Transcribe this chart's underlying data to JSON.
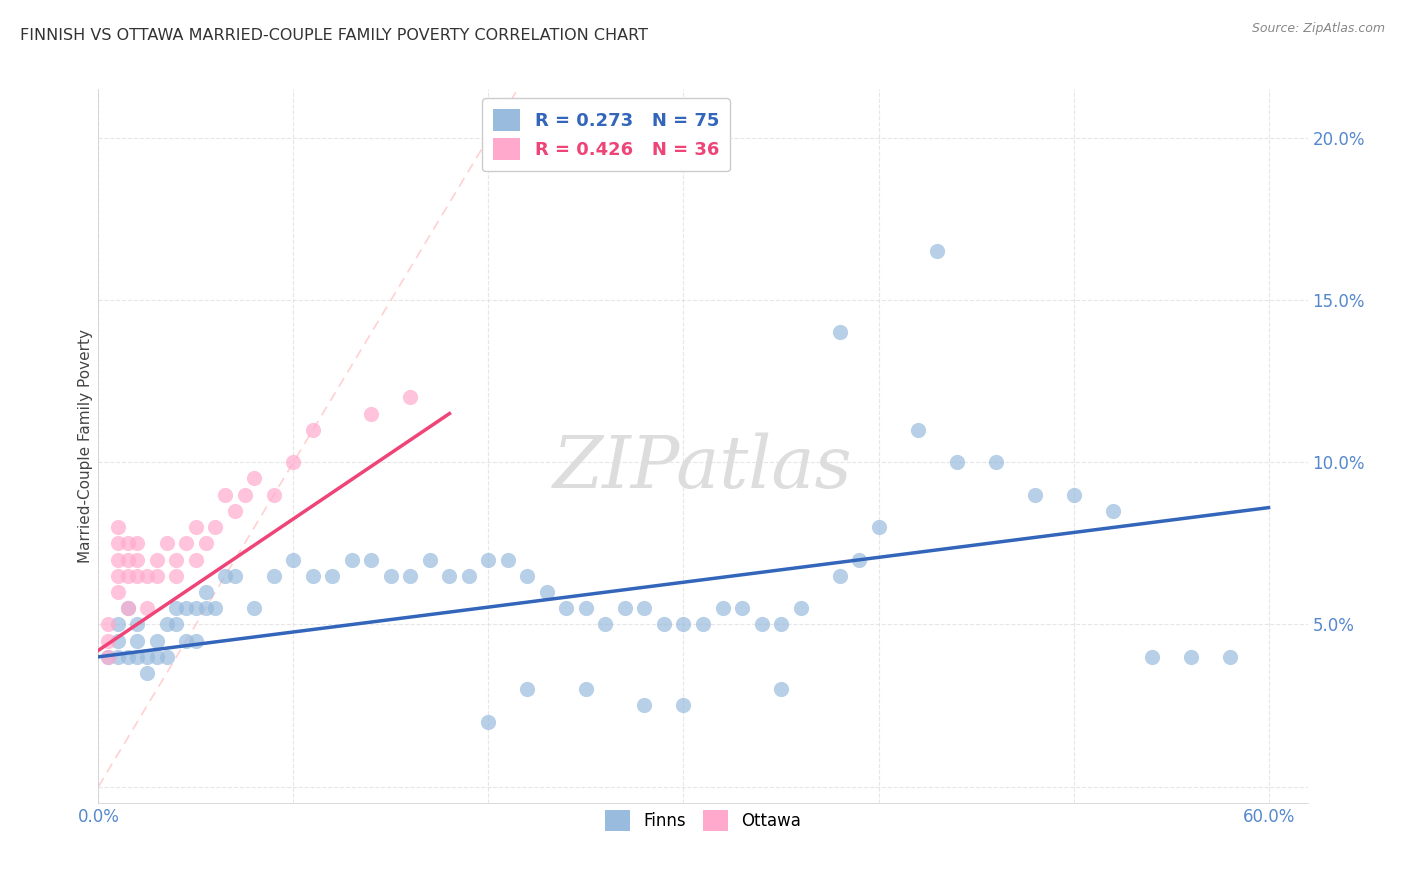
{
  "title": "FINNISH VS OTTAWA MARRIED-COUPLE FAMILY POVERTY CORRELATION CHART",
  "source": "Source: ZipAtlas.com",
  "ylabel": "Married-Couple Family Poverty",
  "xlim": [
    0.0,
    0.62
  ],
  "ylim": [
    -0.005,
    0.215
  ],
  "finns_color": "#99BBDD",
  "ottawa_color": "#FFAACC",
  "finns_R": 0.273,
  "finns_N": 75,
  "ottawa_R": 0.426,
  "ottawa_N": 36,
  "finns_trend_color": "#3366BB",
  "ottawa_trend_color": "#EE4477",
  "diagonal_color": "#FFCCCC",
  "finns_x": [
    0.005,
    0.01,
    0.01,
    0.01,
    0.015,
    0.015,
    0.02,
    0.02,
    0.02,
    0.025,
    0.025,
    0.03,
    0.03,
    0.035,
    0.035,
    0.04,
    0.04,
    0.045,
    0.045,
    0.05,
    0.05,
    0.055,
    0.055,
    0.06,
    0.065,
    0.07,
    0.08,
    0.09,
    0.1,
    0.11,
    0.12,
    0.13,
    0.14,
    0.15,
    0.16,
    0.17,
    0.18,
    0.19,
    0.2,
    0.21,
    0.22,
    0.23,
    0.24,
    0.25,
    0.26,
    0.27,
    0.28,
    0.29,
    0.3,
    0.31,
    0.32,
    0.33,
    0.34,
    0.35,
    0.36,
    0.38,
    0.39,
    0.4,
    0.42,
    0.44,
    0.46,
    0.48,
    0.5,
    0.52,
    0.54,
    0.56,
    0.58,
    0.35,
    0.3,
    0.28,
    0.25,
    0.22,
    0.2,
    0.43,
    0.38
  ],
  "finns_y": [
    0.04,
    0.05,
    0.045,
    0.04,
    0.055,
    0.04,
    0.04,
    0.045,
    0.05,
    0.04,
    0.035,
    0.04,
    0.045,
    0.04,
    0.05,
    0.055,
    0.05,
    0.055,
    0.045,
    0.055,
    0.045,
    0.055,
    0.06,
    0.055,
    0.065,
    0.065,
    0.055,
    0.065,
    0.07,
    0.065,
    0.065,
    0.07,
    0.07,
    0.065,
    0.065,
    0.07,
    0.065,
    0.065,
    0.07,
    0.07,
    0.065,
    0.06,
    0.055,
    0.055,
    0.05,
    0.055,
    0.055,
    0.05,
    0.05,
    0.05,
    0.055,
    0.055,
    0.05,
    0.05,
    0.055,
    0.065,
    0.07,
    0.08,
    0.11,
    0.1,
    0.1,
    0.09,
    0.09,
    0.085,
    0.04,
    0.04,
    0.04,
    0.03,
    0.025,
    0.025,
    0.03,
    0.03,
    0.02,
    0.165,
    0.14
  ],
  "ottawa_x": [
    0.005,
    0.005,
    0.005,
    0.01,
    0.01,
    0.01,
    0.01,
    0.01,
    0.015,
    0.015,
    0.015,
    0.015,
    0.02,
    0.02,
    0.02,
    0.025,
    0.025,
    0.03,
    0.03,
    0.035,
    0.04,
    0.04,
    0.045,
    0.05,
    0.05,
    0.055,
    0.06,
    0.065,
    0.07,
    0.075,
    0.08,
    0.09,
    0.1,
    0.11,
    0.14,
    0.16
  ],
  "ottawa_y": [
    0.04,
    0.045,
    0.05,
    0.06,
    0.065,
    0.07,
    0.075,
    0.08,
    0.055,
    0.065,
    0.07,
    0.075,
    0.065,
    0.07,
    0.075,
    0.055,
    0.065,
    0.065,
    0.07,
    0.075,
    0.065,
    0.07,
    0.075,
    0.07,
    0.08,
    0.075,
    0.08,
    0.09,
    0.085,
    0.09,
    0.095,
    0.09,
    0.1,
    0.11,
    0.115,
    0.12
  ],
  "background_color": "#FFFFFF",
  "grid_color": "#E0E0E0",
  "finn_trend_x": [
    0.0,
    0.6
  ],
  "finn_trend_y": [
    0.04,
    0.086
  ],
  "ottawa_trend_x": [
    0.0,
    0.18
  ],
  "ottawa_trend_y": [
    0.042,
    0.115
  ]
}
